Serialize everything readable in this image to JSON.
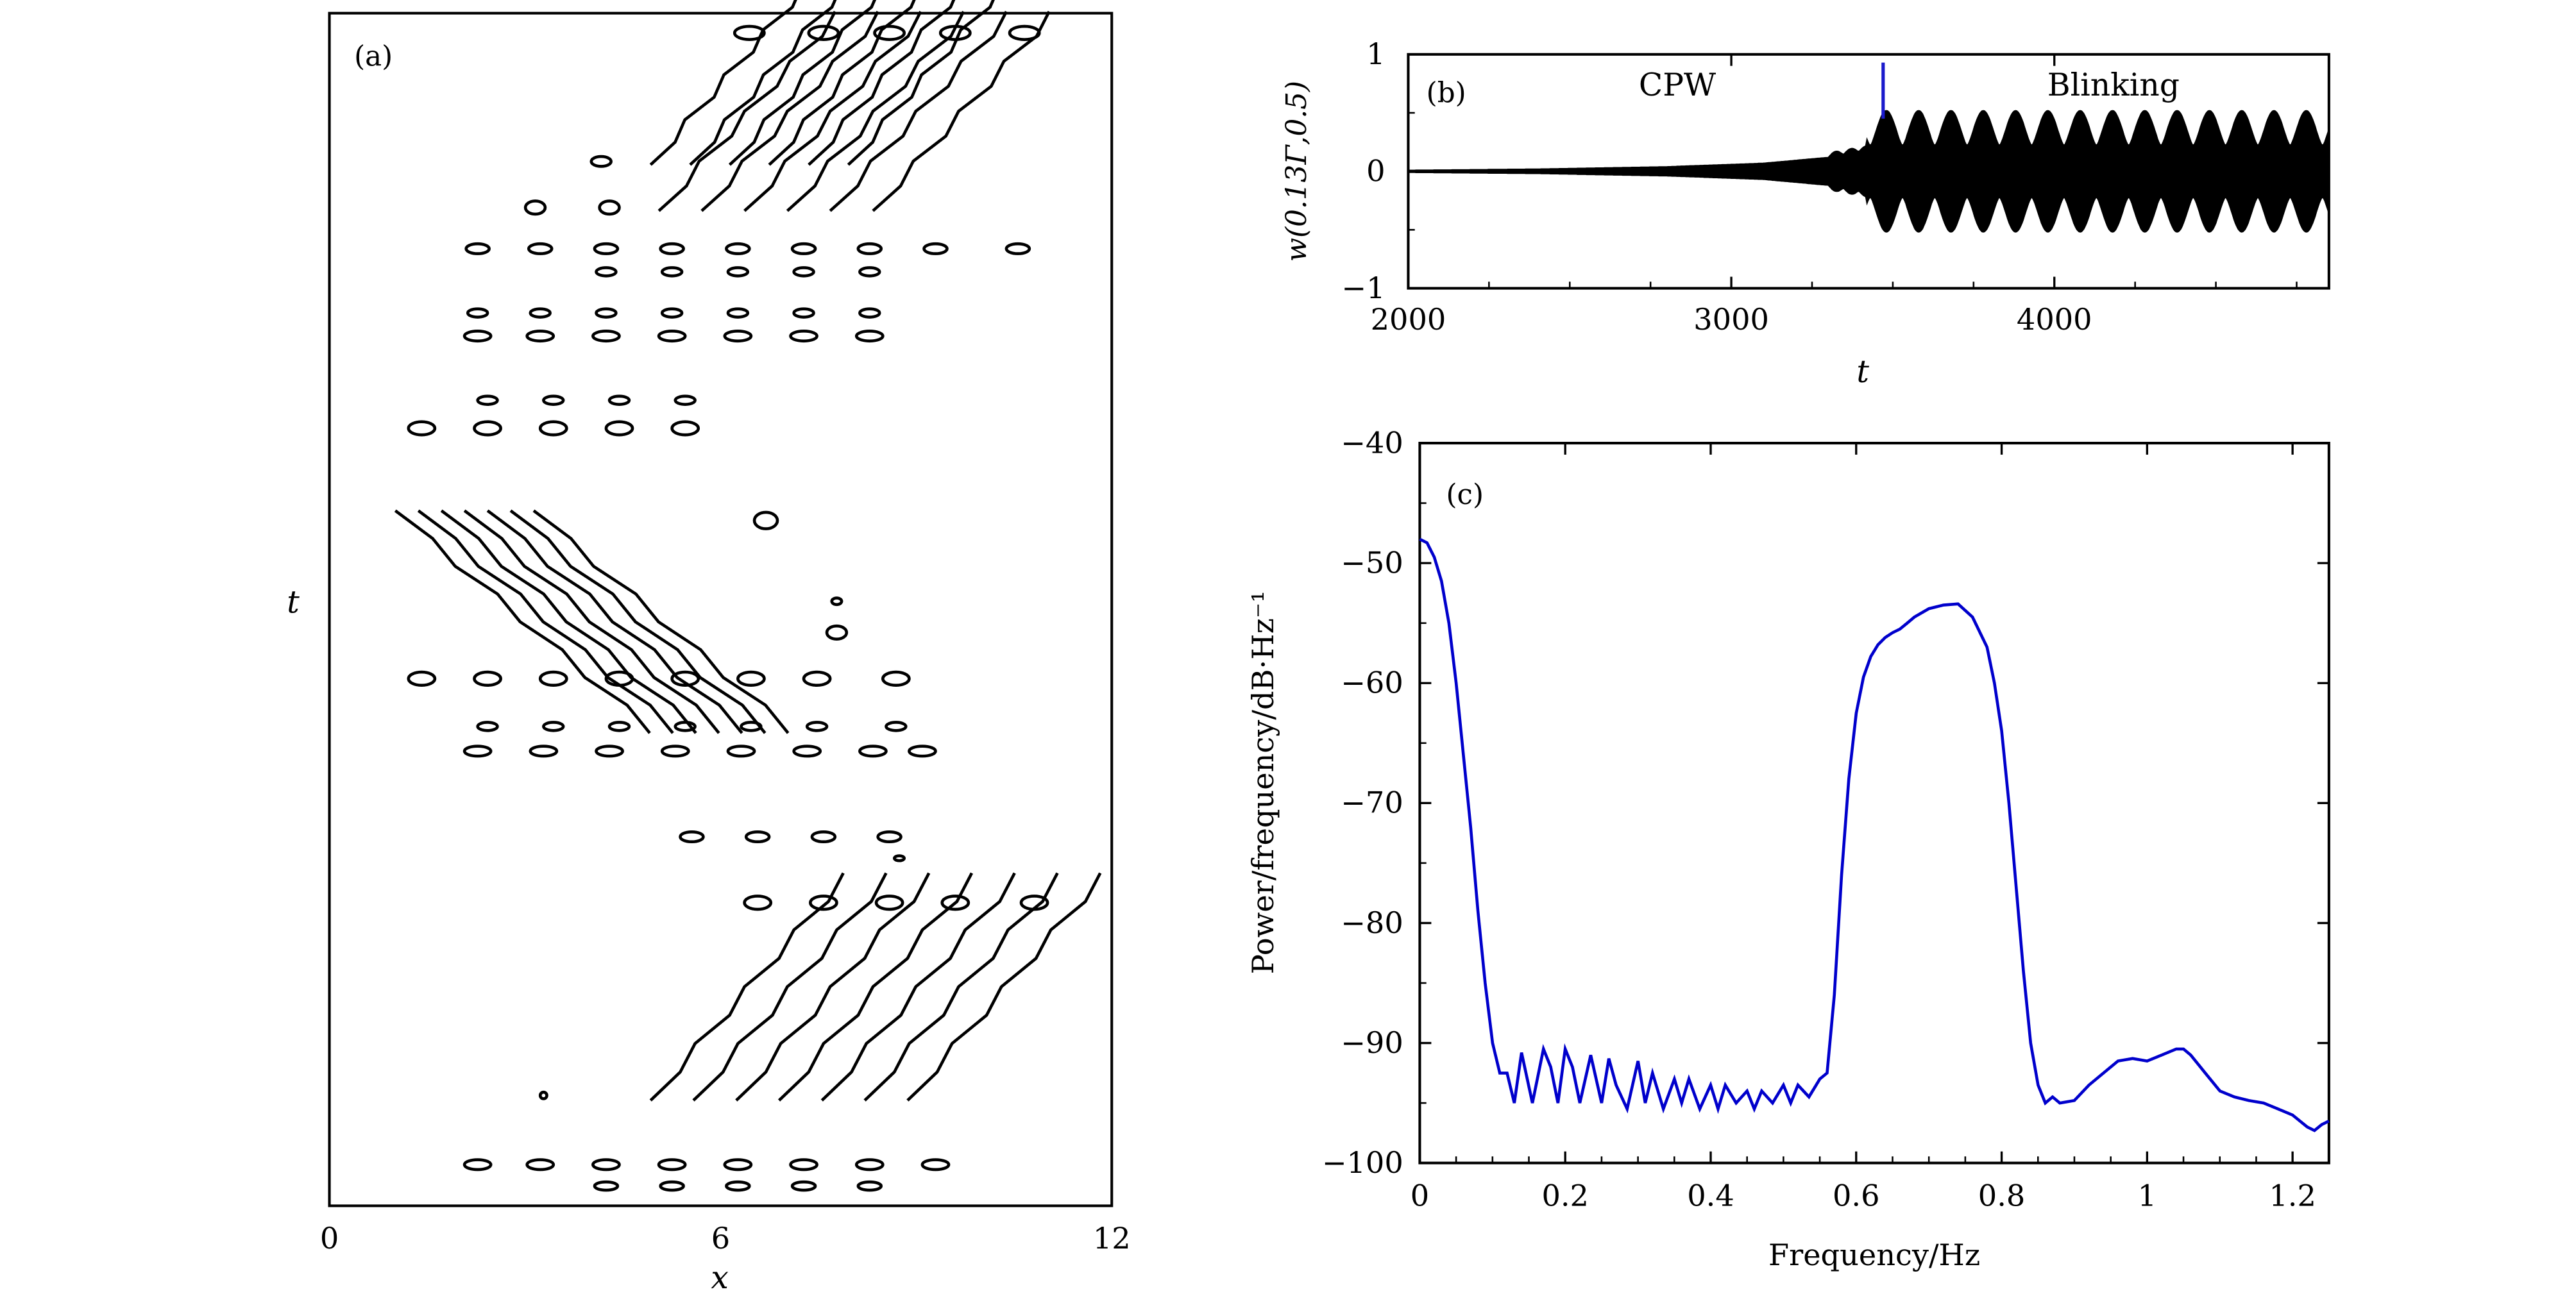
{
  "chart_data": [
    {
      "panel": "a",
      "type": "contour",
      "panel_label": "(a)",
      "xlabel": "x",
      "ylabel": "t",
      "xlim": [
        0,
        12
      ],
      "xticks": [
        0,
        6,
        12
      ],
      "line_color": "#000000",
      "description_of_data": "Contour lines of w(x,t): two diagonal wave bands tilted toward larger x in upper and lower thirds, one band tilted the opposite way in the middle third (blinking state)"
    },
    {
      "panel": "b",
      "type": "line",
      "panel_label": "(b)",
      "xlabel": "t",
      "ylabel": "w(0.13Γ,0.5)",
      "xlim": [
        2000,
        4850
      ],
      "ylim": [
        -1,
        1
      ],
      "xticks": [
        2000,
        3000,
        4000
      ],
      "yticks": [
        -1,
        0,
        1
      ],
      "annotations": [
        "CPW",
        "Blinking"
      ],
      "marker_t": 3470,
      "marker_color": "#1a1acc",
      "envelope_series": {
        "name": "amplitude envelope",
        "t": [
          2000,
          2400,
          2800,
          3100,
          3300,
          3420,
          3480,
          3560,
          3660,
          3760,
          3860,
          3960,
          4060,
          4160,
          4260,
          4360,
          4460,
          4560,
          4660,
          4760,
          4850
        ],
        "amp": [
          0.01,
          0.02,
          0.04,
          0.07,
          0.12,
          0.18,
          0.52,
          0.22,
          0.52,
          0.22,
          0.52,
          0.22,
          0.52,
          0.22,
          0.52,
          0.22,
          0.52,
          0.22,
          0.52,
          0.22,
          0.52
        ]
      }
    },
    {
      "panel": "c",
      "type": "line",
      "panel_label": "(c)",
      "xlabel": "Frequency/Hz",
      "ylabel": "Power/frequency/dB·Hz⁻¹",
      "xlim": [
        0,
        1.25
      ],
      "ylim": [
        -100,
        -40
      ],
      "xticks": [
        0,
        0.2,
        0.4,
        0.6,
        0.8,
        1.0,
        1.2
      ],
      "yticks": [
        -40,
        -50,
        -60,
        -70,
        -80,
        -90,
        -100
      ],
      "series": [
        {
          "color": "#0000cc",
          "x": [
            0,
            0.01,
            0.02,
            0.03,
            0.04,
            0.05,
            0.06,
            0.07,
            0.08,
            0.09,
            0.1,
            0.11,
            0.12,
            0.13,
            0.14,
            0.155,
            0.17,
            0.18,
            0.19,
            0.2,
            0.21,
            0.22,
            0.235,
            0.25,
            0.26,
            0.27,
            0.285,
            0.3,
            0.31,
            0.32,
            0.335,
            0.35,
            0.36,
            0.37,
            0.385,
            0.4,
            0.41,
            0.42,
            0.435,
            0.45,
            0.46,
            0.47,
            0.485,
            0.5,
            0.51,
            0.52,
            0.535,
            0.55,
            0.56,
            0.57,
            0.58,
            0.59,
            0.6,
            0.61,
            0.62,
            0.63,
            0.64,
            0.65,
            0.66,
            0.67,
            0.68,
            0.7,
            0.72,
            0.74,
            0.76,
            0.78,
            0.79,
            0.8,
            0.81,
            0.82,
            0.83,
            0.84,
            0.85,
            0.86,
            0.87,
            0.88,
            0.9,
            0.92,
            0.94,
            0.96,
            0.98,
            1.0,
            1.02,
            1.04,
            1.05,
            1.06,
            1.08,
            1.1,
            1.12,
            1.14,
            1.16,
            1.18,
            1.2,
            1.22,
            1.23,
            1.24,
            1.25
          ],
          "y": [
            -48,
            -48.3,
            -49.5,
            -51.5,
            -55,
            -60,
            -66,
            -72,
            -79,
            -85,
            -90,
            -92.5,
            -92.5,
            -95,
            -90.8,
            -95,
            -90.5,
            -92,
            -95,
            -90.5,
            -92,
            -95,
            -91,
            -95,
            -91.3,
            -93.5,
            -95.5,
            -91.5,
            -95,
            -92.5,
            -95.5,
            -93,
            -95,
            -93,
            -95.5,
            -93.5,
            -95.5,
            -93.5,
            -95,
            -94,
            -95.5,
            -94,
            -95,
            -93.5,
            -95,
            -93.5,
            -94.5,
            -93,
            -92.5,
            -86,
            -76,
            -68,
            -62.5,
            -59.5,
            -57.8,
            -56.8,
            -56.2,
            -55.8,
            -55.5,
            -55,
            -54.5,
            -53.8,
            -53.5,
            -53.4,
            -54.5,
            -57,
            -60,
            -64,
            -70,
            -77,
            -84,
            -90,
            -93.5,
            -95,
            -94.5,
            -95,
            -94.8,
            -93.5,
            -92.5,
            -91.5,
            -91.3,
            -91.5,
            -91,
            -90.5,
            -90.5,
            -91,
            -92.5,
            -94,
            -94.5,
            -94.8,
            -95,
            -95.5,
            -96,
            -97,
            -97.3,
            -96.8,
            -96.5
          ]
        }
      ]
    }
  ]
}
